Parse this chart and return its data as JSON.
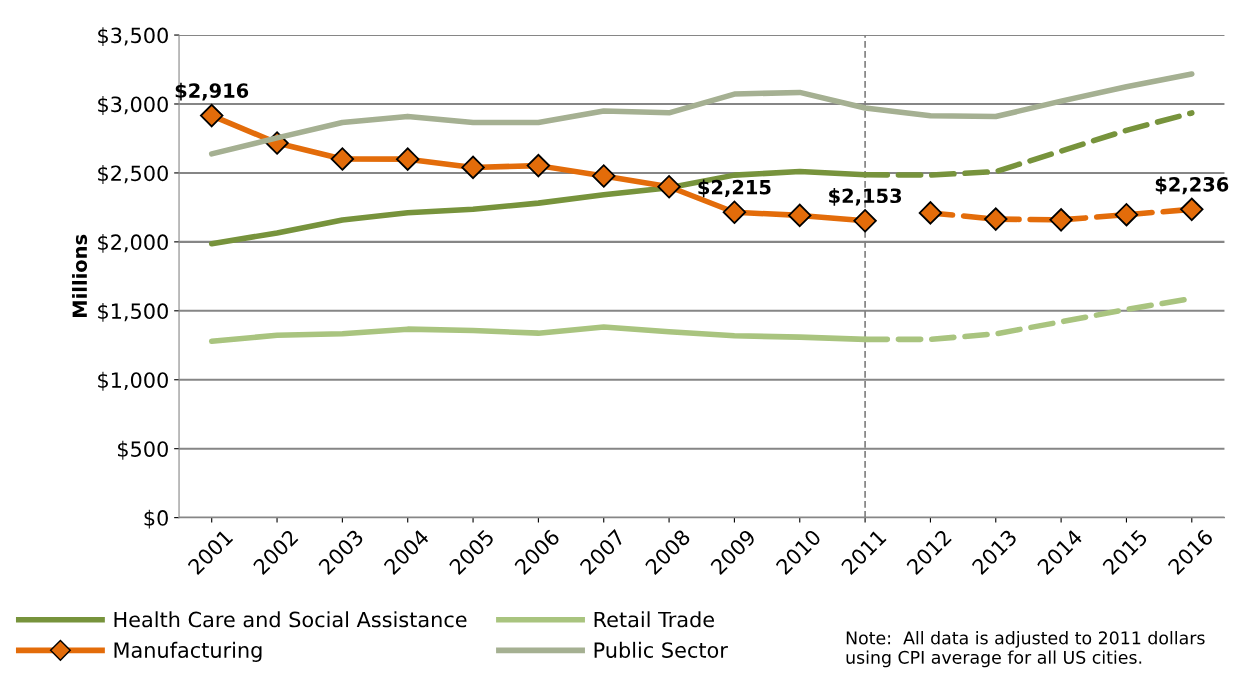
{
  "chart_data": {
    "type": "line",
    "ylabel": "Millions",
    "xlim": [
      2000.5,
      2016.5
    ],
    "xticks": [
      2001,
      2002,
      2003,
      2004,
      2005,
      2006,
      2007,
      2008,
      2009,
      2010,
      2011,
      2012,
      2013,
      2014,
      2015,
      2016
    ],
    "ylim": [
      0,
      3500
    ],
    "yticks": [
      {
        "value": 0,
        "label": "$0"
      },
      {
        "value": 500,
        "label": "$500"
      },
      {
        "value": 1000,
        "label": "$1,000"
      },
      {
        "value": 1500,
        "label": "$1,500"
      },
      {
        "value": 2000,
        "label": "$2,000"
      },
      {
        "value": 2500,
        "label": "$2,500"
      },
      {
        "value": 3000,
        "label": "$3,000"
      },
      {
        "value": 3500,
        "label": "$3,500"
      }
    ],
    "grid": "y",
    "legend": "bottom left",
    "series": [
      {
        "name": "Health Care and Social Assistance",
        "color": "#77933c",
        "line_style": "solid",
        "x": [
          2001,
          2002,
          2003,
          2004,
          2005,
          2006,
          2007,
          2008,
          2009,
          2010,
          2011
        ],
        "values": [
          1986,
          2065,
          2159,
          2211,
          2237,
          2281,
          2341,
          2392,
          2484,
          2510,
          2487
        ]
      },
      {
        "color": "#77933c",
        "line_style": "dashed",
        "x": [
          2011,
          2012,
          2013,
          2014,
          2015,
          2016
        ],
        "values": [
          2487,
          2484,
          2510,
          2659,
          2809,
          2935
        ]
      },
      {
        "name": "Manufacturing",
        "color": "#e36c0a",
        "line_style": "solid",
        "marker": "diamond",
        "x": [
          2001,
          2002,
          2003,
          2004,
          2005,
          2006,
          2007,
          2008,
          2009,
          2010,
          2011
        ],
        "values": [
          2916,
          2717,
          2601,
          2600,
          2540,
          2553,
          2478,
          2400,
          2215,
          2192,
          2153
        ],
        "value_labels": [
          "$2,916",
          null,
          null,
          null,
          null,
          null,
          null,
          null,
          "$2,215",
          null,
          "$2,153"
        ]
      },
      {
        "color": "#e36c0a",
        "line_style": "dashed",
        "marker": "diamond",
        "x": [
          2012,
          2013,
          2014,
          2015,
          2016
        ],
        "values": [
          2210,
          2165,
          2160,
          2197,
          2236
        ],
        "value_labels": [
          null,
          null,
          null,
          null,
          "$2,236"
        ]
      },
      {
        "name": "Retail Trade",
        "color": "#a9c47f",
        "line_style": "solid",
        "x": [
          2001,
          2002,
          2003,
          2004,
          2005,
          2006,
          2007,
          2008,
          2009,
          2010,
          2011
        ],
        "values": [
          1279,
          1323,
          1333,
          1367,
          1357,
          1338,
          1382,
          1348,
          1319,
          1309,
          1293
        ]
      },
      {
        "color": "#a9c47f",
        "line_style": "dashed",
        "x": [
          2011,
          2012,
          2013,
          2014,
          2015,
          2016
        ],
        "values": [
          1293,
          1293,
          1333,
          1420,
          1510,
          1590
        ]
      },
      {
        "name": "Public Sector",
        "color": "#a5b092",
        "line_style": "solid",
        "x": [
          2001,
          2002,
          2003,
          2004,
          2005,
          2006,
          2007,
          2008,
          2009,
          2010,
          2011,
          2012,
          2013,
          2014,
          2015,
          2016
        ],
        "values": [
          2638,
          2754,
          2866,
          2910,
          2866,
          2866,
          2949,
          2936,
          3072,
          3084,
          2971,
          2914,
          2909,
          3021,
          3125,
          3217
        ]
      }
    ],
    "ref_lines": [
      {
        "axis": "x",
        "value": 2011,
        "color": "#808080",
        "line_style": "dashed"
      }
    ],
    "annotations": [
      "Note:  All data is adjusted to 2011 dollars using CPI average for all US cities."
    ]
  }
}
